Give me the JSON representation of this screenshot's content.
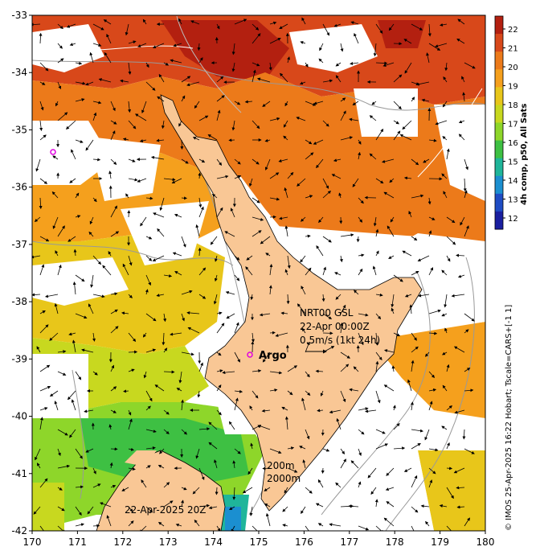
{
  "colorbar": {
    "label": "4h comp, p50, All Sats",
    "ticks": [
      "22",
      "21",
      "20",
      "19",
      "18",
      "17",
      "16",
      "15",
      "14",
      "13",
      "12"
    ],
    "colors": [
      "#b32010",
      "#d8481a",
      "#ec7a1a",
      "#f5a01d",
      "#e8c61a",
      "#c8d81f",
      "#8ed62a",
      "#3ec043",
      "#1fb59a",
      "#1b8fd0",
      "#1f4cc4",
      "#1a1fa0"
    ]
  },
  "axes": {
    "x_ticks": [
      "170",
      "171",
      "172",
      "173",
      "174",
      "175",
      "176",
      "177",
      "178",
      "179",
      "180"
    ],
    "y_ticks": [
      "-33",
      "-34",
      "-35",
      "-36",
      "-37",
      "-38",
      "-39",
      "-40",
      "-41",
      "-42"
    ]
  },
  "annotations": {
    "product": "NRT00 GSL",
    "time": "22-Apr 00:00Z",
    "scale": "0.5m/s (1kt 24h)",
    "argo": "Argo",
    "contour_200": "200m",
    "contour_2000": "2000m",
    "image_time": "22-Apr-2025 20Z"
  },
  "credit": "© IMOS 25-Apr-2025 16:22 Hobart; Tscale=CARS+[-1 1]",
  "colors": {
    "land": "#f9c795",
    "argo_marker": "#e000e0"
  }
}
